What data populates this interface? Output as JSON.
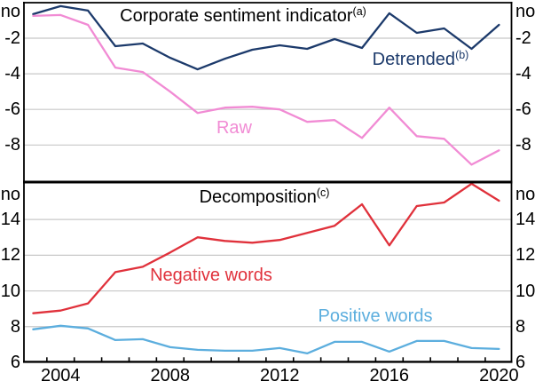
{
  "chart_data": [
    {
      "id": "corporate-sentiment",
      "type": "line",
      "title": "Corporate sentiment indicator",
      "title_note": "(a)",
      "unit": "no",
      "ylim": [
        -10,
        0
      ],
      "yticks": [
        -2,
        -4,
        -6,
        -8
      ],
      "gridlines": [
        -2,
        -4,
        -6,
        -8
      ],
      "legend_position": "inline-labels",
      "x": [
        2003,
        2004,
        2005,
        2006,
        2007,
        2008,
        2009,
        2010,
        2011,
        2012,
        2013,
        2014,
        2015,
        2016,
        2017,
        2018,
        2019,
        2020
      ],
      "series": [
        {
          "name": "Detrended",
          "note": "(b)",
          "color": "#1c3a6b",
          "values": [
            -0.65,
            -0.2,
            -0.45,
            -2.45,
            -2.3,
            -3.1,
            -3.75,
            -3.15,
            -2.65,
            -2.4,
            -2.6,
            -2.05,
            -2.55,
            -0.6,
            -1.7,
            -1.45,
            -2.6,
            -1.25
          ]
        },
        {
          "name": "Raw",
          "note": "",
          "color": "#f18bd4",
          "values": [
            -0.75,
            -0.7,
            -1.25,
            -3.65,
            -3.9,
            -5.0,
            -6.2,
            -5.9,
            -5.85,
            -6.0,
            -6.7,
            -6.6,
            -7.6,
            -5.9,
            -7.5,
            -7.65,
            -9.1,
            -8.3
          ]
        }
      ]
    },
    {
      "id": "decomposition",
      "type": "line",
      "title": "Decomposition",
      "title_note": "(c)",
      "unit": "no",
      "ylim": [
        6,
        16
      ],
      "yticks": [
        14,
        12,
        10,
        8,
        6
      ],
      "gridlines": [
        14,
        12,
        10,
        8
      ],
      "legend_position": "inline-labels",
      "x": [
        2003,
        2004,
        2005,
        2006,
        2007,
        2008,
        2009,
        2010,
        2011,
        2012,
        2013,
        2014,
        2015,
        2016,
        2017,
        2018,
        2019,
        2020
      ],
      "series": [
        {
          "name": "Negative words",
          "note": "",
          "color": "#e0313b",
          "values": [
            8.75,
            8.9,
            9.3,
            11.05,
            11.35,
            12.15,
            13.0,
            12.8,
            12.7,
            12.85,
            13.25,
            13.65,
            14.85,
            12.55,
            14.75,
            14.95,
            16.0,
            15.05
          ]
        },
        {
          "name": "Positive words",
          "note": "",
          "color": "#5caede",
          "values": [
            7.85,
            8.05,
            7.9,
            7.25,
            7.3,
            6.85,
            6.7,
            6.65,
            6.65,
            6.8,
            6.5,
            7.15,
            7.15,
            6.6,
            7.2,
            7.2,
            6.8,
            6.75
          ]
        }
      ]
    }
  ],
  "x_axis": {
    "labeled_years": [
      "2004",
      "2008",
      "2012",
      "2016",
      "2020"
    ]
  },
  "style": {
    "gridline_color": "#c8c8c8",
    "axis_color": "#000000"
  }
}
